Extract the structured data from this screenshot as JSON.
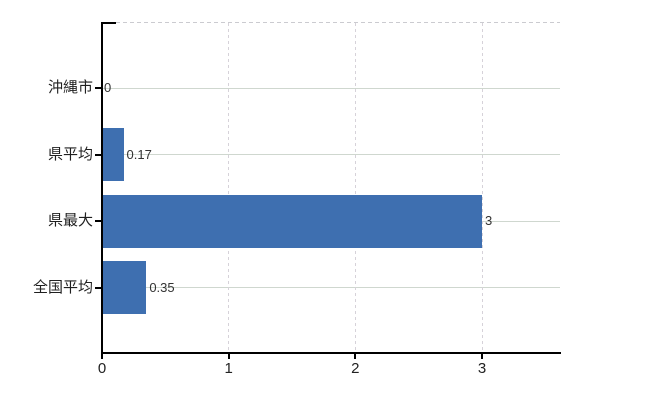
{
  "chart_data": {
    "type": "bar",
    "orientation": "horizontal",
    "title": "",
    "xlabel": "",
    "ylabel": "",
    "categories": [
      "沖縄市",
      "県平均",
      "県最大",
      "全国平均"
    ],
    "values": [
      0,
      0.17,
      3,
      0.35
    ],
    "value_labels": [
      "0",
      "0.17",
      "3",
      "0.35"
    ],
    "x_ticks": [
      0,
      1,
      2,
      3
    ],
    "x_tick_labels": [
      "0",
      "1",
      "2",
      "3"
    ],
    "xlim": [
      0,
      3.63
    ],
    "grid": true,
    "legend": false,
    "colors": {
      "bar": "#3e6fb0",
      "h_gridline": "#cfd7cf",
      "v_gridline": "#d6d2d9",
      "axis": "#000000",
      "category_label": "#1f1f1f",
      "value_label": "#333333",
      "tick_label": "#222222",
      "background": "#ffffff"
    }
  }
}
